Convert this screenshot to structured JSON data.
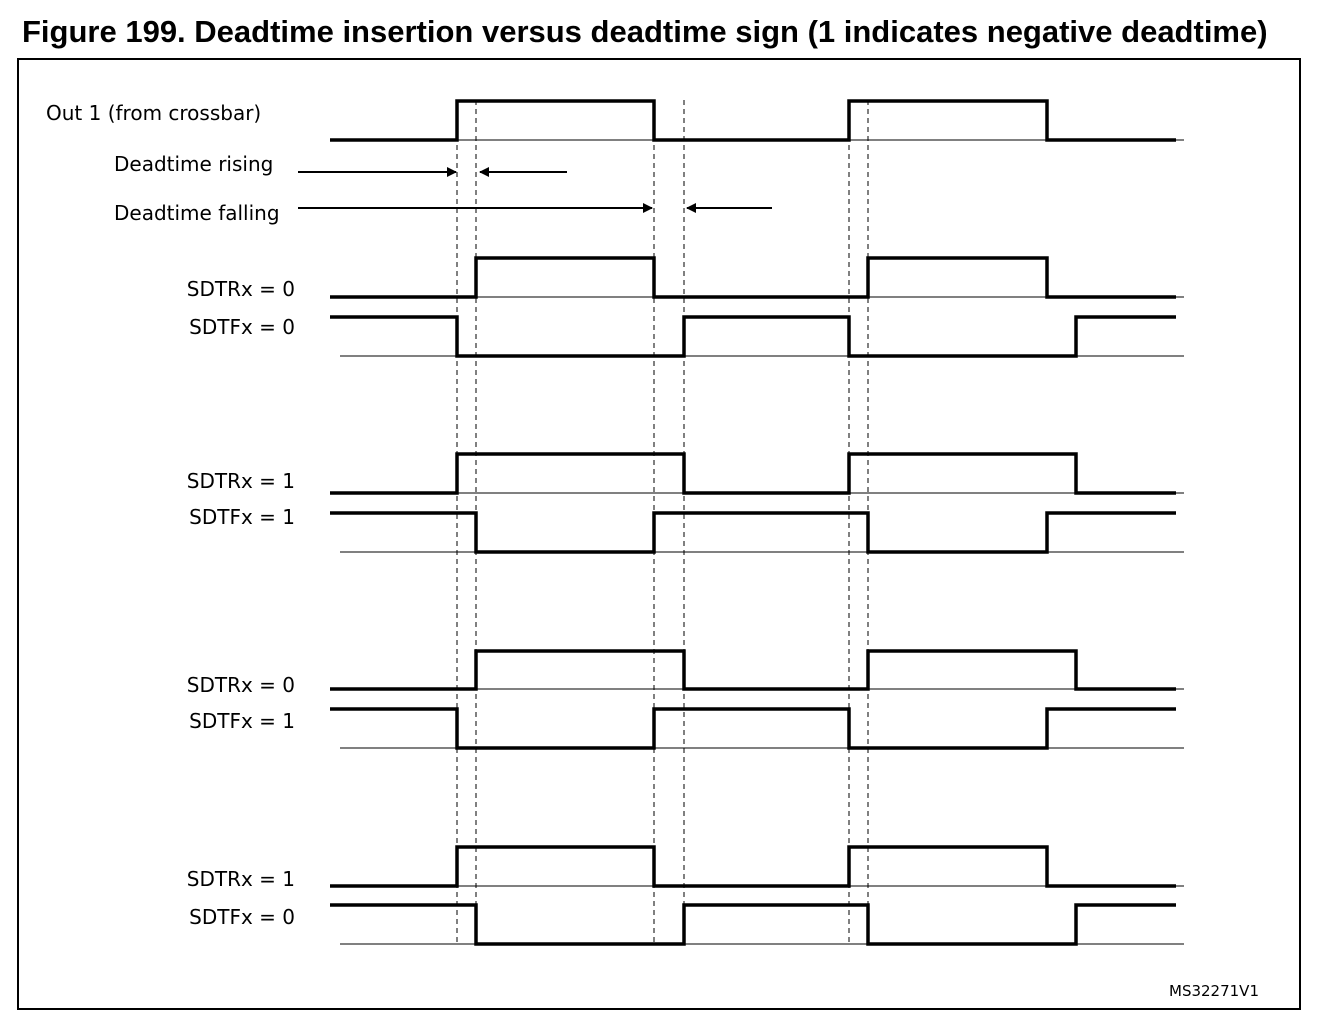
{
  "figure": {
    "title": "Figure 199. Deadtime insertion versus deadtime sign (1 indicates negative deadtime)",
    "code": "MS32271V1"
  },
  "labels": {
    "out1": "Out 1 (from crossbar)",
    "deadtime_rising": "Deadtime rising",
    "deadtime_falling": "Deadtime falling"
  },
  "signal_groups": [
    {
      "sdtr_label": "SDTRx = 0",
      "sdtf_label": "SDTFx = 0",
      "sdtr": 0,
      "sdtf": 0
    },
    {
      "sdtr_label": "SDTRx = 1",
      "sdtf_label": "SDTFx = 1",
      "sdtr": 1,
      "sdtf": 1
    },
    {
      "sdtr_label": "SDTRx = 0",
      "sdtf_label": "SDTFx = 1",
      "sdtr": 0,
      "sdtf": 1
    },
    {
      "sdtr_label": "SDTRx = 1",
      "sdtf_label": "SDTFx = 0",
      "sdtr": 1,
      "sdtf": 0
    }
  ],
  "colors": {
    "line": "#000000",
    "background": "#ffffff"
  }
}
